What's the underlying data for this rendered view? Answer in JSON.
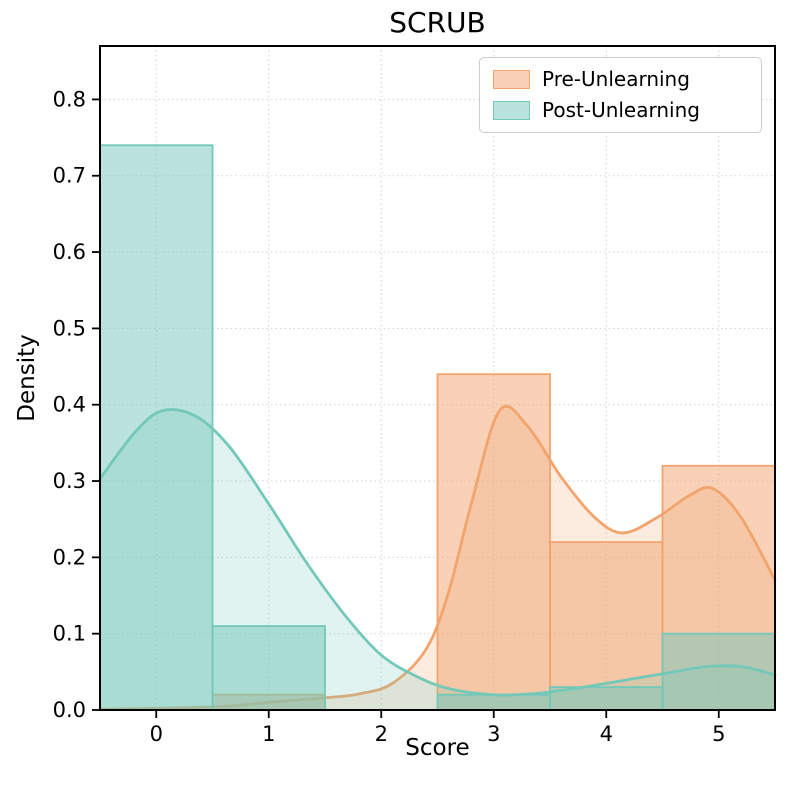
{
  "chart_data": {
    "type": "bar",
    "subtype": "histogram_with_kde",
    "title": "SCRUB",
    "xlabel": "Score",
    "ylabel": "Density",
    "xlim": [
      -0.5,
      5.5
    ],
    "ylim": [
      0,
      0.87
    ],
    "xticks": [
      0,
      1,
      2,
      3,
      4,
      5
    ],
    "yticks": [
      0.0,
      0.1,
      0.2,
      0.3,
      0.4,
      0.5,
      0.6,
      0.7,
      0.8
    ],
    "grid": true,
    "legend_position": "upper right",
    "bin_width": 1,
    "bin_centers": [
      0,
      1,
      2,
      3,
      4,
      5
    ],
    "series": [
      {
        "name": "Pre-Unlearning",
        "color": "#F2A46E",
        "bar_heights": [
          0,
          0.02,
          0,
          0.44,
          0.22,
          0.32
        ],
        "kde": [
          [
            -0.5,
            0.001
          ],
          [
            0.5,
            0.004
          ],
          [
            1.0,
            0.01
          ],
          [
            1.5,
            0.016
          ],
          [
            1.8,
            0.021
          ],
          [
            2.1,
            0.035
          ],
          [
            2.4,
            0.08
          ],
          [
            2.6,
            0.155
          ],
          [
            2.8,
            0.27
          ],
          [
            3.05,
            0.392
          ],
          [
            3.3,
            0.372
          ],
          [
            3.6,
            0.305
          ],
          [
            3.9,
            0.252
          ],
          [
            4.15,
            0.232
          ],
          [
            4.45,
            0.252
          ],
          [
            4.75,
            0.282
          ],
          [
            4.95,
            0.29
          ],
          [
            5.2,
            0.252
          ],
          [
            5.5,
            0.17
          ]
        ]
      },
      {
        "name": "Post-Unlearning",
        "color": "#74C8B9",
        "bar_heights": [
          0.74,
          0.11,
          0,
          0.02,
          0.03,
          0.1
        ],
        "kde": [
          [
            -0.5,
            0.303
          ],
          [
            -0.2,
            0.362
          ],
          [
            0.05,
            0.392
          ],
          [
            0.35,
            0.385
          ],
          [
            0.65,
            0.345
          ],
          [
            1.0,
            0.27
          ],
          [
            1.35,
            0.19
          ],
          [
            1.7,
            0.12
          ],
          [
            2.0,
            0.072
          ],
          [
            2.3,
            0.045
          ],
          [
            2.6,
            0.028
          ],
          [
            3.0,
            0.02
          ],
          [
            3.4,
            0.022
          ],
          [
            3.8,
            0.03
          ],
          [
            4.2,
            0.04
          ],
          [
            4.6,
            0.05
          ],
          [
            4.9,
            0.057
          ],
          [
            5.2,
            0.057
          ],
          [
            5.5,
            0.046
          ]
        ]
      }
    ]
  }
}
